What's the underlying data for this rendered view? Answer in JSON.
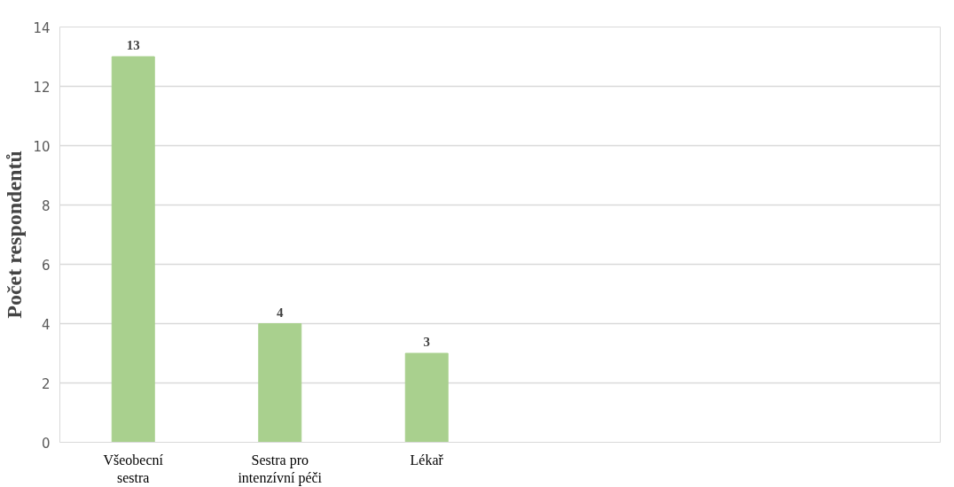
{
  "chart_data": {
    "type": "bar",
    "ylabel": "Počet respondentů",
    "categories": [
      "Všeobecní sestra",
      "Sestra pro intenzívní péči",
      "Lékař",
      null,
      null,
      null
    ],
    "values": [
      13,
      4,
      3,
      null,
      null,
      null
    ],
    "color": "#a9d08e",
    "ylim": [
      0,
      14
    ],
    "yticks": [
      0,
      2,
      4,
      6,
      8,
      10,
      12,
      14
    ],
    "grid": "y",
    "data_labels": true
  }
}
